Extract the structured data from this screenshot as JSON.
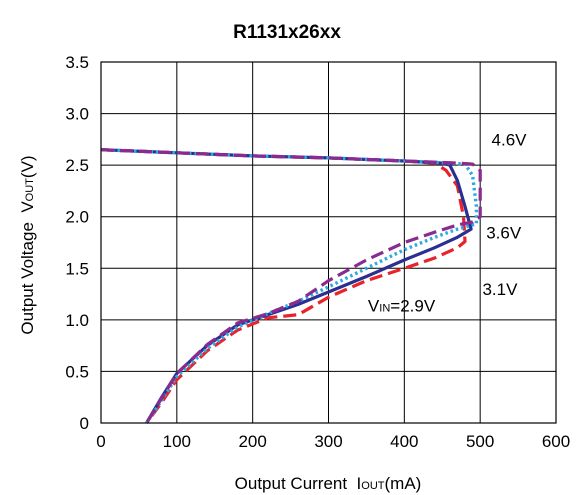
{
  "chart_data": {
    "type": "line",
    "title": "R1131x26xx",
    "xlabel": {
      "main": "Output Current  I",
      "sub": "OUT",
      "unit": "(mA)"
    },
    "ylabel": {
      "main": "Output Voltage  V",
      "sub": "OUT",
      "unit": "(V)"
    },
    "xlim": [
      0,
      600
    ],
    "ylim": [
      0,
      3.5
    ],
    "x_ticks": [
      "0",
      "100",
      "200",
      "300",
      "400",
      "500",
      "600"
    ],
    "y_ticks": [
      "0",
      "0.5",
      "1.0",
      "1.5",
      "2.0",
      "2.5",
      "3.0",
      "3.5"
    ],
    "grid": true,
    "series": [
      {
        "color": "#e8232a",
        "dash": "dashed",
        "x": [
          0,
          100,
          200,
          300,
          400,
          440,
          455,
          470,
          478,
          480,
          470,
          440,
          400,
          350,
          300,
          260,
          220,
          180,
          140,
          100,
          80,
          60
        ],
        "y": [
          2.65,
          2.62,
          2.59,
          2.57,
          2.54,
          2.52,
          2.45,
          2.3,
          2.0,
          1.76,
          1.7,
          1.6,
          1.5,
          1.38,
          1.22,
          1.05,
          1.02,
          0.9,
          0.7,
          0.42,
          0.2,
          0.0
        ]
      },
      {
        "color": "#2b2f8f",
        "dash": "solid",
        "x": [
          0,
          100,
          200,
          300,
          400,
          450,
          460,
          470,
          480,
          488,
          470,
          440,
          400,
          350,
          300,
          260,
          220,
          180,
          140,
          100,
          80,
          60
        ],
        "y": [
          2.65,
          2.62,
          2.59,
          2.57,
          2.54,
          2.52,
          2.5,
          2.35,
          2.1,
          1.88,
          1.8,
          1.7,
          1.58,
          1.42,
          1.27,
          1.15,
          1.05,
          0.95,
          0.75,
          0.48,
          0.25,
          0.0
        ]
      },
      {
        "color": "#2ba9e1",
        "dash": "dotted",
        "x": [
          0,
          100,
          200,
          300,
          400,
          460,
          480,
          490,
          495,
          495,
          470,
          440,
          400,
          350,
          300,
          260,
          220,
          180,
          140,
          100,
          80,
          60
        ],
        "y": [
          2.65,
          2.62,
          2.59,
          2.57,
          2.54,
          2.52,
          2.51,
          2.4,
          2.1,
          1.93,
          1.88,
          1.8,
          1.68,
          1.5,
          1.32,
          1.18,
          1.06,
          0.93,
          0.72,
          0.45,
          0.22,
          0.0
        ]
      },
      {
        "color": "#8b2a8f",
        "dash": "dashed",
        "x": [
          0,
          100,
          200,
          300,
          400,
          470,
          490,
          500,
          500,
          490,
          470,
          440,
          400,
          350,
          300,
          260,
          220,
          180,
          140,
          100,
          80,
          60
        ],
        "y": [
          2.65,
          2.62,
          2.59,
          2.57,
          2.54,
          2.52,
          2.51,
          2.45,
          2.0,
          1.95,
          1.92,
          1.85,
          1.75,
          1.58,
          1.38,
          1.18,
          1.06,
          0.97,
          0.76,
          0.48,
          0.24,
          0.0
        ]
      }
    ],
    "annotations": [
      {
        "text": "4.6V",
        "x": 515,
        "y": 2.69
      },
      {
        "text": "3.6V",
        "x": 508,
        "y": 1.79
      },
      {
        "text": "3.1V",
        "x": 503,
        "y": 1.24
      },
      {
        "main": "V",
        "sub": "IN",
        "rest": "=2.9V",
        "x": 352,
        "y": 1.08
      }
    ]
  }
}
